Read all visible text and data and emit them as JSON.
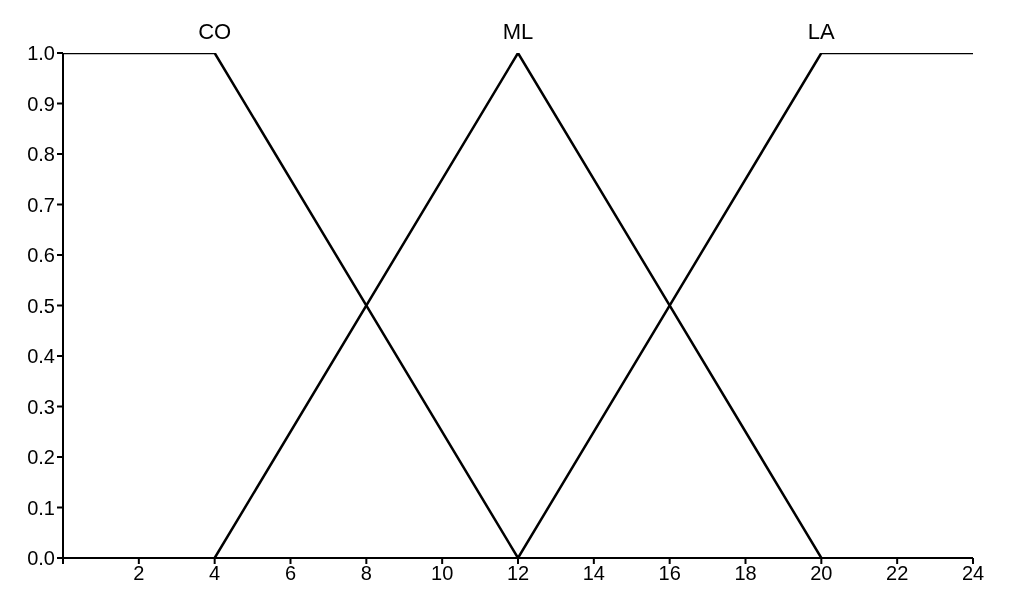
{
  "chart_data": {
    "type": "line",
    "marker": "none",
    "grid": false,
    "legend": false,
    "xlim": [
      0,
      24
    ],
    "xticks": [
      {
        "value": 0,
        "label": null
      },
      2,
      4,
      6,
      8,
      10,
      12,
      14,
      16,
      18,
      20,
      22,
      24
    ],
    "ylim": [
      0,
      1
    ],
    "yticks": [
      {
        "value": 0,
        "label": "0.0"
      },
      0.1,
      0.2,
      0.3,
      0.4,
      0.5,
      0.6,
      0.7,
      0.8,
      0.9,
      {
        "value": 1,
        "label": "1.0"
      }
    ],
    "series": [
      {
        "name": "CO",
        "color": "#000000",
        "x": [
          0,
          4,
          12
        ],
        "values": [
          1,
          1,
          0
        ]
      },
      {
        "name": "ML",
        "color": "#000000",
        "x": [
          4,
          12,
          20
        ],
        "values": [
          0,
          1,
          0
        ]
      },
      {
        "name": "LA",
        "color": "#000000",
        "x": [
          12,
          20,
          24
        ],
        "values": [
          0,
          1,
          1
        ]
      }
    ]
  }
}
